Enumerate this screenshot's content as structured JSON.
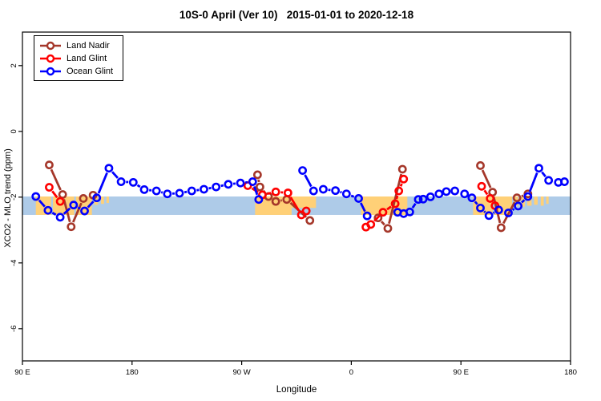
{
  "chart_data": {
    "type": "line",
    "title": "10S-0 April (Ver 10)   2015-01-01 to 2020-12-18",
    "xlabel": "Longitude",
    "ylabel": "XCO2 - MLO trend (ppm)",
    "x_range": [
      90,
      540
    ],
    "ylim": [
      -6.98,
      3.02
    ],
    "grid": false,
    "legend_position": "top-left",
    "x_ticks": [
      {
        "deg": 90,
        "label": "90 E"
      },
      {
        "deg": 180,
        "label": "180"
      },
      {
        "deg": 270,
        "label": "90 W"
      },
      {
        "deg": 360,
        "label": "0"
      },
      {
        "deg": 450,
        "label": "90 E"
      },
      {
        "deg": 540,
        "label": "180"
      }
    ],
    "y_ticks": [
      {
        "val": 2,
        "label": "2"
      },
      {
        "val": 0,
        "label": "0"
      },
      {
        "val": -2,
        "label": "-2"
      },
      {
        "val": -4,
        "label": "-4"
      },
      {
        "val": -6,
        "label": "-6"
      }
    ],
    "reference_band": {
      "from": -1.98,
      "to": -2.54,
      "color": "#AECBE8"
    },
    "land_patches": {
      "color": "#FFD077",
      "full": [
        [
          101,
          113.5
        ],
        [
          115,
          132.5
        ],
        [
          134,
          147
        ],
        [
          281,
          311
        ],
        [
          368,
          406
        ],
        [
          460,
          476
        ],
        [
          477.5,
          492
        ]
      ],
      "partial": [
        [
          311,
          331,
          0.62
        ],
        [
          149,
          152,
          0.45
        ],
        [
          154.5,
          157,
          0.4
        ],
        [
          159,
          161,
          0.35
        ],
        [
          494,
          497,
          0.5
        ],
        [
          499.5,
          502.5,
          0.55
        ],
        [
          504.5,
          508,
          0.5
        ],
        [
          510,
          513,
          0.45
        ],
        [
          515.5,
          518,
          0.5
        ],
        [
          520,
          522,
          0.4
        ]
      ]
    },
    "series": [
      {
        "name": "Land Nadir",
        "color": "#A5372A",
        "segments": [
          [
            [
              112,
              -1.02
            ],
            [
              123,
              -1.92
            ],
            [
              130,
              -2.9
            ],
            [
              140,
              -2.04
            ],
            [
              148,
              -1.94
            ]
          ],
          [
            [
              283,
              -1.32
            ],
            [
              285,
              -1.69
            ],
            [
              292,
              -1.98
            ],
            [
              298,
              -2.13
            ],
            [
              307,
              -2.07
            ],
            [
              326,
              -2.71
            ]
          ],
          [
            [
              382,
              -2.63
            ],
            [
              390,
              -2.95
            ],
            [
              402,
              -1.15
            ]
          ],
          [
            [
              466,
              -1.04
            ],
            [
              476,
              -1.85
            ],
            [
              483,
              -2.93
            ],
            [
              496,
              -2.02
            ],
            [
              505,
              -1.9
            ]
          ]
        ]
      },
      {
        "name": "Land Glint",
        "color": "#FF0000",
        "segments": [
          [
            [
              112,
              -1.7
            ],
            [
              121,
              -2.13
            ]
          ],
          [
            [
              275,
              -1.65
            ],
            [
              287,
              -1.93
            ],
            [
              298,
              -1.84
            ],
            [
              308,
              -1.87
            ],
            [
              319,
              -2.54
            ],
            [
              323,
              -2.42
            ]
          ],
          [
            [
              372,
              -2.91
            ],
            [
              376,
              -2.83
            ],
            [
              386,
              -2.46
            ],
            [
              396,
              -2.2
            ],
            [
              399,
              -1.81
            ],
            [
              403,
              -1.45
            ]
          ],
          [
            [
              467,
              -1.67
            ],
            [
              474,
              -2.04
            ],
            [
              478,
              -2.26
            ]
          ]
        ]
      },
      {
        "name": "Ocean Glint",
        "color": "#0000FF",
        "segments": [
          [
            [
              101,
              -1.98
            ],
            [
              111,
              -2.4
            ],
            [
              121,
              -2.61
            ],
            [
              132,
              -2.24
            ],
            [
              141,
              -2.42
            ],
            [
              151,
              -2.02
            ],
            [
              161,
              -1.12
            ],
            [
              171,
              -1.53
            ],
            [
              181,
              -1.55
            ],
            [
              190,
              -1.77
            ],
            [
              200,
              -1.81
            ],
            [
              209,
              -1.9
            ],
            [
              219,
              -1.88
            ],
            [
              229,
              -1.81
            ],
            [
              239,
              -1.76
            ],
            [
              249,
              -1.69
            ],
            [
              259,
              -1.61
            ],
            [
              269,
              -1.57
            ],
            [
              279,
              -1.53
            ],
            [
              284,
              -2.07
            ]
          ],
          [
            [
              320,
              -1.19
            ],
            [
              329,
              -1.81
            ],
            [
              337,
              -1.76
            ],
            [
              347,
              -1.8
            ],
            [
              356,
              -1.9
            ],
            [
              366,
              -2.04
            ],
            [
              373,
              -2.57
            ]
          ],
          [
            [
              398,
              -2.46
            ],
            [
              403,
              -2.5
            ],
            [
              408,
              -2.45
            ],
            [
              415,
              -2.07
            ],
            [
              419,
              -2.06
            ],
            [
              425,
              -1.99
            ],
            [
              432,
              -1.9
            ],
            [
              438,
              -1.83
            ],
            [
              445,
              -1.81
            ],
            [
              453,
              -1.9
            ],
            [
              459,
              -2.02
            ],
            [
              466,
              -2.33
            ],
            [
              473,
              -2.56
            ],
            [
              481,
              -2.39
            ],
            [
              489,
              -2.48
            ],
            [
              497,
              -2.27
            ],
            [
              505,
              -1.98
            ],
            [
              514,
              -1.12
            ],
            [
              522,
              -1.49
            ],
            [
              530,
              -1.55
            ],
            [
              535,
              -1.53
            ]
          ]
        ]
      }
    ]
  }
}
